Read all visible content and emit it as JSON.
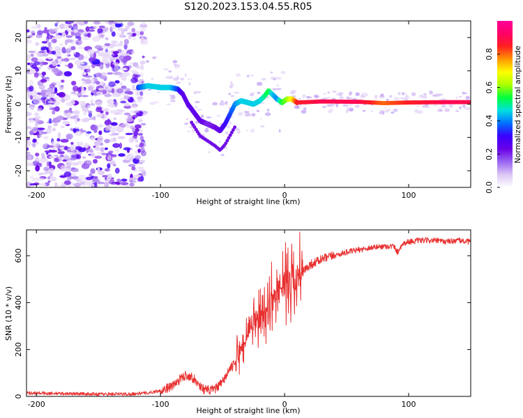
{
  "title": "S120.2023.153.04.55.R05",
  "chart_data": [
    {
      "type": "heatmap",
      "xlabel": "Height of straight line (km)",
      "ylabel": "Frequency (Hz)",
      "xlim": [
        -208,
        150
      ],
      "ylim": [
        -25,
        25
      ],
      "xticks": [
        -200,
        -100,
        0,
        100
      ],
      "yticks": [
        -20,
        -10,
        0,
        10,
        20
      ],
      "colorbar": {
        "label": "Normalized spectral amplitude",
        "range": [
          0,
          1
        ],
        "ticks": [
          "0.0",
          "0.2",
          "0.4",
          "0.6",
          "0.8"
        ],
        "tick_values": [
          0.0,
          0.2,
          0.4,
          0.6,
          0.8
        ],
        "colormap": [
          "#ffffff",
          "#dcc6f5",
          "#9966f0",
          "#6a00e6",
          "#3a00ff",
          "#0070ff",
          "#00e0e0",
          "#00ff40",
          "#a8ff00",
          "#ffff00",
          "#ff9900",
          "#ff2020",
          "#ff0066",
          "#ff0099"
        ]
      },
      "ridge": {
        "x": [
          -118,
          -110,
          -100,
          -92,
          -86,
          -82,
          -78,
          -72,
          -68,
          -62,
          -56,
          -52,
          -48,
          -44,
          -40,
          -35,
          -30,
          -25,
          -20,
          -16,
          -13,
          -10,
          -6,
          -2,
          2,
          6,
          10,
          30,
          60,
          80,
          100,
          130,
          150
        ],
        "y": [
          5,
          5.5,
          5,
          5,
          4.5,
          3,
          0,
          -3,
          -5,
          -6,
          -7,
          -8,
          -6,
          -3,
          0,
          1,
          0.5,
          0,
          1,
          2.5,
          4,
          3,
          1.5,
          0.5,
          1.5,
          1.5,
          0.5,
          0.8,
          0.7,
          0.3,
          0.5,
          0.6,
          0.6
        ],
        "amplitude": [
          0.35,
          0.45,
          0.45,
          0.45,
          0.35,
          0.25,
          0.25,
          0.25,
          0.25,
          0.2,
          0.22,
          0.25,
          0.3,
          0.35,
          0.4,
          0.45,
          0.45,
          0.45,
          0.45,
          0.5,
          0.55,
          0.45,
          0.4,
          0.55,
          0.6,
          0.7,
          0.85,
          0.9,
          0.9,
          0.8,
          0.85,
          0.9,
          0.9
        ]
      }
    },
    {
      "type": "line",
      "xlabel": "Height of straight line (km)",
      "ylabel": "SNR (10 * v/v)",
      "xlim": [
        -208,
        150
      ],
      "ylim": [
        0,
        710
      ],
      "xticks": [
        -200,
        -100,
        0,
        100
      ],
      "yticks": [
        0,
        200,
        400,
        600
      ],
      "color": "#e83030",
      "series": [
        {
          "x": [
            -208,
            -180,
            -150,
            -125,
            -110,
            -100,
            -90,
            -85,
            -80,
            -75,
            -70,
            -65,
            -60,
            -55,
            -50,
            -45,
            -40,
            -35,
            -30,
            -25,
            -20,
            -15,
            -10,
            -5,
            0,
            5,
            10,
            15,
            20,
            30,
            40,
            50,
            60,
            70,
            80,
            88,
            91,
            95,
            100,
            110,
            120,
            130,
            140,
            150
          ],
          "values": [
            15,
            12,
            10,
            10,
            15,
            25,
            45,
            70,
            90,
            85,
            55,
            30,
            25,
            35,
            60,
            110,
            140,
            200,
            260,
            300,
            330,
            370,
            420,
            450,
            480,
            510,
            500,
            530,
            560,
            585,
            600,
            615,
            625,
            635,
            640,
            640,
            615,
            650,
            660,
            665,
            665,
            660,
            665,
            658
          ]
        }
      ]
    }
  ]
}
